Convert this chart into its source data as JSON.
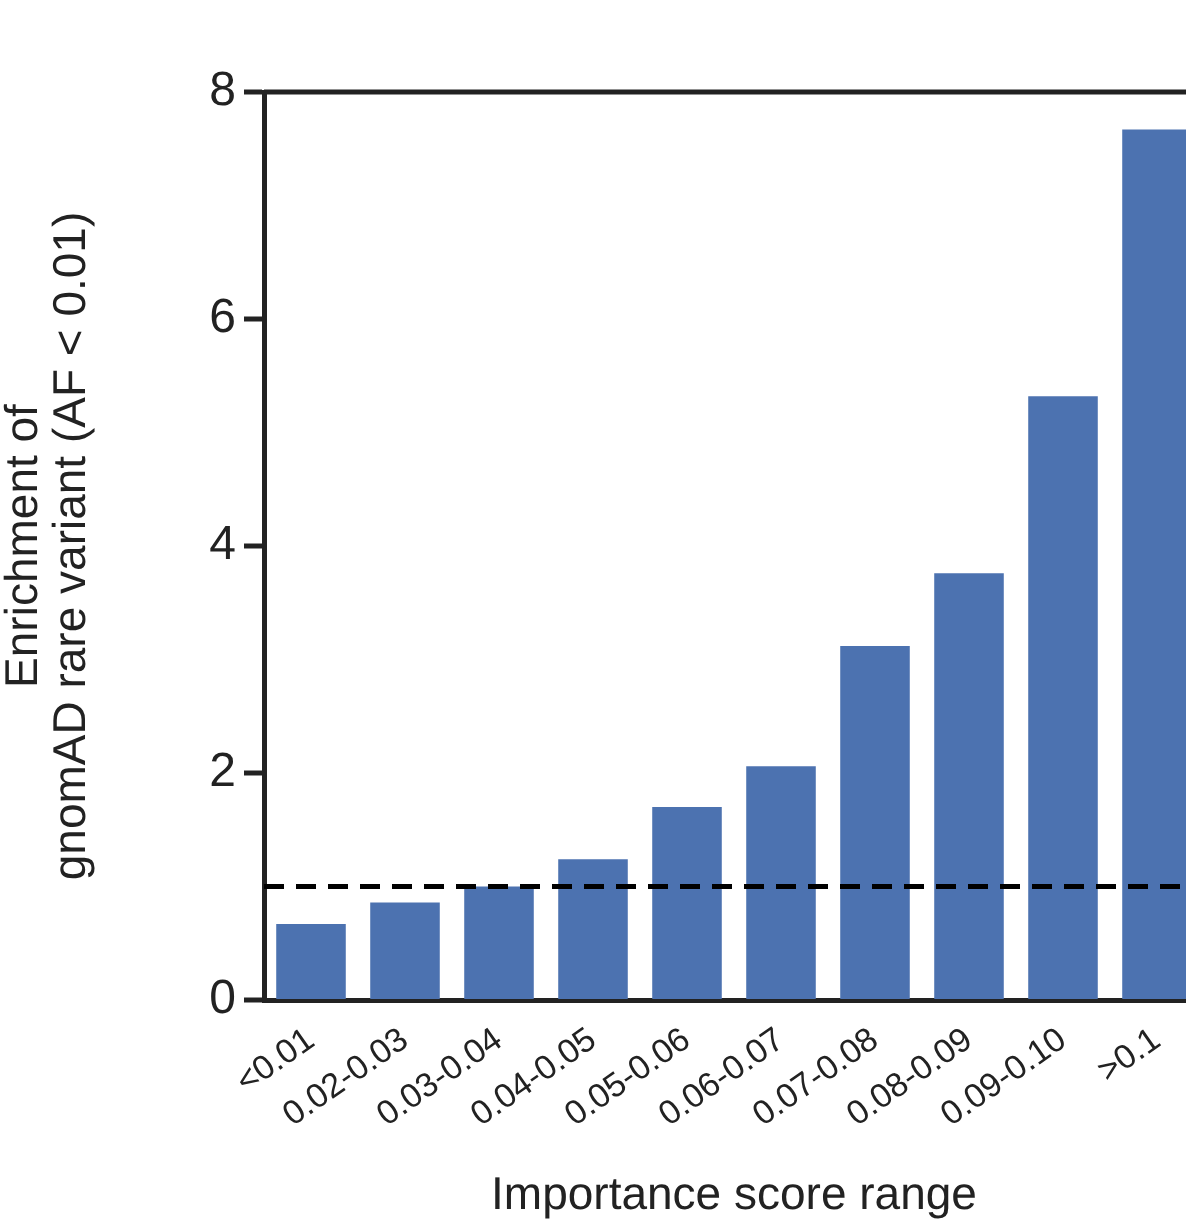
{
  "chart_data": {
    "type": "bar",
    "xlabel": "Importance score range",
    "ylabel": "Enrichment of\ngnomAD rare variant (AF < 0.01)",
    "categories": [
      "<0.01",
      "0.02-0.03",
      "0.03-0.04",
      "0.04-0.05",
      "0.05-0.06",
      "0.06-0.07",
      "0.07-0.08",
      "0.08-0.09",
      "0.09-0.10",
      ">0.1"
    ],
    "values": [
      0.67,
      0.86,
      1.0,
      1.24,
      1.7,
      2.06,
      3.12,
      3.76,
      5.32,
      7.67
    ],
    "color": "#4c72b0",
    "ylim": [
      0,
      8
    ],
    "yticks": [
      0,
      2,
      4,
      6,
      8
    ],
    "grid": false,
    "legend": false,
    "ref_lines": [
      {
        "axis": "y",
        "value": 1,
        "color": "#000000",
        "line_style": "dashed"
      }
    ]
  }
}
